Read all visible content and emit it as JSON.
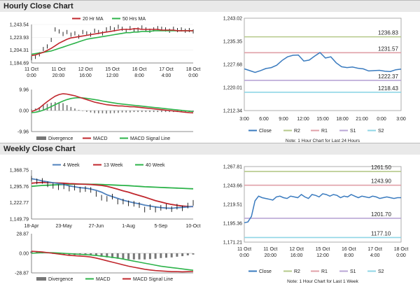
{
  "sections": {
    "hourly_title": "Hourly Close Chart",
    "weekly_title": "Weekly Close Chart"
  },
  "colors": {
    "close": "#3a7bbf",
    "ma_short": "#c0272d",
    "ma_long": "#2db34a",
    "r2": "#b5c98a",
    "r1": "#e0a0a8",
    "s1": "#b9a6d6",
    "s2": "#8fd6e6",
    "divergence": "#777777",
    "macd": "#c0272d",
    "signal": "#2db34a",
    "w4": "#4f81bd",
    "w13": "#c0272d",
    "w40": "#2db34a"
  },
  "chart_data": [
    {
      "id": "hourly_price",
      "type": "line",
      "x_tick_labels": [
        [
          "11 Oct",
          "0:00"
        ],
        [
          "11 Oct",
          "20:00"
        ],
        [
          "12 Oct",
          "16:00"
        ],
        [
          "15 Oct",
          "12:00"
        ],
        [
          "16 Oct",
          "8:00"
        ],
        [
          "17 Oct",
          "4:00"
        ],
        [
          "18 Oct",
          "0:00"
        ]
      ],
      "y_tick_labels": [
        "1,243.54",
        "1,223.93",
        "1,204.31",
        "1,184.69"
      ],
      "ylim": [
        1184.69,
        1243.54
      ],
      "legend": [
        "20 Hr MA",
        "50 Hrs MA"
      ],
      "close": [
        1192,
        1194,
        1198,
        1206,
        1210,
        1220,
        1236,
        1233,
        1229,
        1232,
        1228,
        1230,
        1225,
        1232,
        1230,
        1228,
        1234,
        1232,
        1230,
        1236,
        1238,
        1236,
        1240,
        1237,
        1234,
        1238,
        1235,
        1236,
        1239,
        1236,
        1234,
        1236,
        1238,
        1237,
        1236,
        1234,
        1237,
        1235,
        1236,
        1234,
        1235,
        1233
      ],
      "ma_20": [
        1196,
        1197,
        1199,
        1201,
        1204,
        1207,
        1211,
        1215,
        1218,
        1221,
        1223,
        1224,
        1225,
        1226,
        1227,
        1228,
        1229,
        1230,
        1231,
        1232,
        1233,
        1234,
        1235,
        1236,
        1236,
        1236,
        1237,
        1237,
        1236,
        1236,
        1236,
        1236,
        1236,
        1235,
        1235,
        1235,
        1235,
        1234,
        1234,
        1234,
        1234,
        1234
      ],
      "ma_50": [
        1198,
        1199,
        1200,
        1201,
        1202,
        1203,
        1205,
        1207,
        1209,
        1211,
        1213,
        1215,
        1217,
        1219,
        1221,
        1222,
        1223,
        1224,
        1225,
        1226,
        1227,
        1228,
        1229,
        1230,
        1231,
        1231,
        1232,
        1232,
        1233,
        1233,
        1233,
        1234,
        1234,
        1234,
        1234,
        1234,
        1234,
        1234,
        1234,
        1234,
        1234,
        1234
      ]
    },
    {
      "id": "hourly_macd",
      "type": "line",
      "y_tick_labels": [
        "9.96",
        "0.00",
        "-9.96"
      ],
      "ylim": [
        -9.96,
        9.96
      ],
      "legend": [
        "Divergence",
        "MACD",
        "MACD Signal Line"
      ],
      "macd": [
        -0.5,
        0.2,
        1.2,
        2.8,
        4.2,
        5.6,
        6.8,
        7.6,
        8.0,
        7.8,
        7.4,
        7.0,
        6.4,
        5.8,
        5.2,
        4.6,
        4.0,
        3.6,
        3.2,
        2.8,
        2.6,
        2.4,
        2.2,
        2.2,
        2.0,
        1.8,
        1.8,
        1.6,
        1.4,
        1.2,
        1.0,
        0.8,
        0.6,
        0.4,
        0.2,
        0.0,
        -0.2,
        -0.4,
        -0.6,
        -0.8,
        -1.0,
        -1.1
      ],
      "signal": [
        -1.0,
        -0.8,
        -0.4,
        0.2,
        1.0,
        1.9,
        2.8,
        3.7,
        4.5,
        5.2,
        5.7,
        6.0,
        6.1,
        6.0,
        5.8,
        5.5,
        5.2,
        4.9,
        4.5,
        4.2,
        3.9,
        3.6,
        3.3,
        3.1,
        2.9,
        2.7,
        2.5,
        2.3,
        2.1,
        1.9,
        1.7,
        1.5,
        1.3,
        1.1,
        0.9,
        0.7,
        0.5,
        0.3,
        0.1,
        -0.1,
        -0.3,
        -0.5
      ]
    },
    {
      "id": "hourly_24h",
      "type": "line",
      "x_tick_labels": [
        "3:00",
        "6:00",
        "9:00",
        "12:00",
        "15:00",
        "18:00",
        "21:00",
        "0:00",
        "3:00"
      ],
      "y_tick_labels": [
        "1,243.02",
        "1,235.35",
        "1,227.68",
        "1,220.01",
        "1,212.34"
      ],
      "ylim": [
        1212.34,
        1243.02
      ],
      "close": [
        1226.2,
        1225.6,
        1225.0,
        1225.6,
        1226.3,
        1226.6,
        1227.4,
        1229.0,
        1230.2,
        1230.7,
        1230.8,
        1228.8,
        1229.1,
        1230.4,
        1231.6,
        1229.8,
        1230.2,
        1228.2,
        1226.9,
        1226.6,
        1226.8,
        1226.4,
        1226.2,
        1225.5,
        1225.6,
        1225.7,
        1225.4,
        1225.3,
        1225.9,
        1226.1
      ],
      "levels": [
        {
          "name": "R2",
          "value": 1236.83,
          "label": "1236.83"
        },
        {
          "name": "R1",
          "value": 1231.57,
          "label": "1231.57"
        },
        {
          "name": "S1",
          "value": 1222.37,
          "label": "1222.37"
        },
        {
          "name": "S2",
          "value": 1218.43,
          "label": "1218.43"
        }
      ],
      "legend": [
        "Close",
        "R2",
        "R1",
        "S1",
        "S2"
      ],
      "note": "Note: 1 Hour Chart for Last 24 Hours"
    },
    {
      "id": "weekly_price",
      "type": "line",
      "x_tick_labels": [
        "18-Apr",
        "23-May",
        "27-Jun",
        "1-Aug",
        "5-Sep",
        "10-Oct"
      ],
      "y_tick_labels": [
        "1,368.75",
        "1,295.76",
        "1,222.77",
        "1,149.79"
      ],
      "ylim": [
        1149.79,
        1368.75
      ],
      "legend": [
        "4 Week",
        "13 Week",
        "40 Week"
      ],
      "close": [
        1330,
        1318,
        1320,
        1305,
        1298,
        1292,
        1296,
        1286,
        1290,
        1281,
        1284,
        1280,
        1262,
        1245,
        1240,
        1250,
        1228,
        1228,
        1220,
        1218,
        1212,
        1192,
        1203,
        1192,
        1200,
        1205,
        1194,
        1205,
        1198,
        1210,
        1222
      ],
      "w4": [
        1330,
        1326,
        1320,
        1316,
        1312,
        1308,
        1304,
        1298,
        1294,
        1290,
        1288,
        1284,
        1278,
        1270,
        1258,
        1250,
        1242,
        1234,
        1228,
        1222,
        1218,
        1212,
        1208,
        1204,
        1201,
        1199,
        1198,
        1200,
        1202,
        1204,
        1206
      ],
      "w13": [
        1310,
        1312,
        1313,
        1313,
        1312,
        1311,
        1310,
        1308,
        1307,
        1306,
        1305,
        1304,
        1302,
        1300,
        1296,
        1290,
        1283,
        1276,
        1270,
        1262,
        1255,
        1248,
        1240,
        1232,
        1226,
        1220,
        1215,
        1211,
        1208,
        1206,
        1205
      ],
      "w40": [
        1296,
        1298,
        1300,
        1301,
        1302,
        1303,
        1304,
        1305,
        1306,
        1306,
        1306,
        1305,
        1305,
        1304,
        1303,
        1302,
        1301,
        1300,
        1299,
        1297,
        1296,
        1294,
        1293,
        1292,
        1291,
        1290,
        1289,
        1288,
        1287,
        1286,
        1285
      ]
    },
    {
      "id": "weekly_macd",
      "type": "line",
      "y_tick_labels": [
        "28.87",
        "0.00",
        "-28.87"
      ],
      "ylim": [
        -28.87,
        28.87
      ],
      "legend": [
        "Divergence",
        "MACD",
        "MACD Signal Line"
      ],
      "macd": [
        3.0,
        2.5,
        2.0,
        1.0,
        0.0,
        -1.0,
        -2.0,
        -3.0,
        -3.5,
        -4.0,
        -4.5,
        -5.5,
        -7.0,
        -9.0,
        -11.0,
        -13.0,
        -15.0,
        -17.0,
        -19.0,
        -20.5,
        -22.0,
        -23.5,
        -24.5,
        -25.5,
        -26.0,
        -26.5,
        -27.0,
        -27.0,
        -27.2,
        -27.0,
        -26.8
      ],
      "signal": [
        0.0,
        0.5,
        1.0,
        1.0,
        0.8,
        0.4,
        0.0,
        -0.5,
        -1.0,
        -1.5,
        -2.0,
        -2.5,
        -3.2,
        -4.0,
        -5.0,
        -6.0,
        -7.0,
        -8.5,
        -10.0,
        -11.5,
        -13.0,
        -14.5,
        -16.0,
        -17.5,
        -19.0,
        -20.0,
        -21.0,
        -22.0,
        -23.0,
        -24.0,
        -25.0
      ]
    },
    {
      "id": "weekly_1h",
      "type": "line",
      "x_tick_labels": [
        [
          "11 Oct",
          "0:00"
        ],
        [
          "11 Oct",
          "20:00"
        ],
        [
          "12 Oct",
          "16:00"
        ],
        [
          "15 Oct",
          "12:00"
        ],
        [
          "16 Oct",
          "8:00"
        ],
        [
          "17 Oct",
          "4:00"
        ],
        [
          "18 Oct",
          "0:00"
        ]
      ],
      "y_tick_labels": [
        "1,267.81",
        "1,243.66",
        "1,219.51",
        "1,195.36",
        "1,171.21"
      ],
      "ylim": [
        1171.21,
        1267.81
      ],
      "close": [
        1196,
        1197,
        1204,
        1224,
        1230,
        1228,
        1227,
        1226,
        1225,
        1229,
        1230,
        1228,
        1227,
        1230,
        1229,
        1228,
        1232,
        1229,
        1227,
        1232,
        1231,
        1229,
        1233,
        1232,
        1230,
        1232,
        1231,
        1228,
        1230,
        1229,
        1232,
        1230,
        1228,
        1230,
        1229,
        1228,
        1230,
        1229,
        1227,
        1228,
        1229,
        1228,
        1227,
        1228,
        1228
      ],
      "levels": [
        {
          "name": "R2",
          "value": 1261.5,
          "label": "1261.50"
        },
        {
          "name": "R1",
          "value": 1243.9,
          "label": "1243.90"
        },
        {
          "name": "S1",
          "value": 1201.7,
          "label": "1201.70"
        },
        {
          "name": "S2",
          "value": 1177.1,
          "label": "1177.10"
        }
      ],
      "legend": [
        "Close",
        "R2",
        "R1",
        "S1",
        "S2"
      ],
      "note": "Note: 1 Hour Chart for Last 1 Week"
    }
  ]
}
